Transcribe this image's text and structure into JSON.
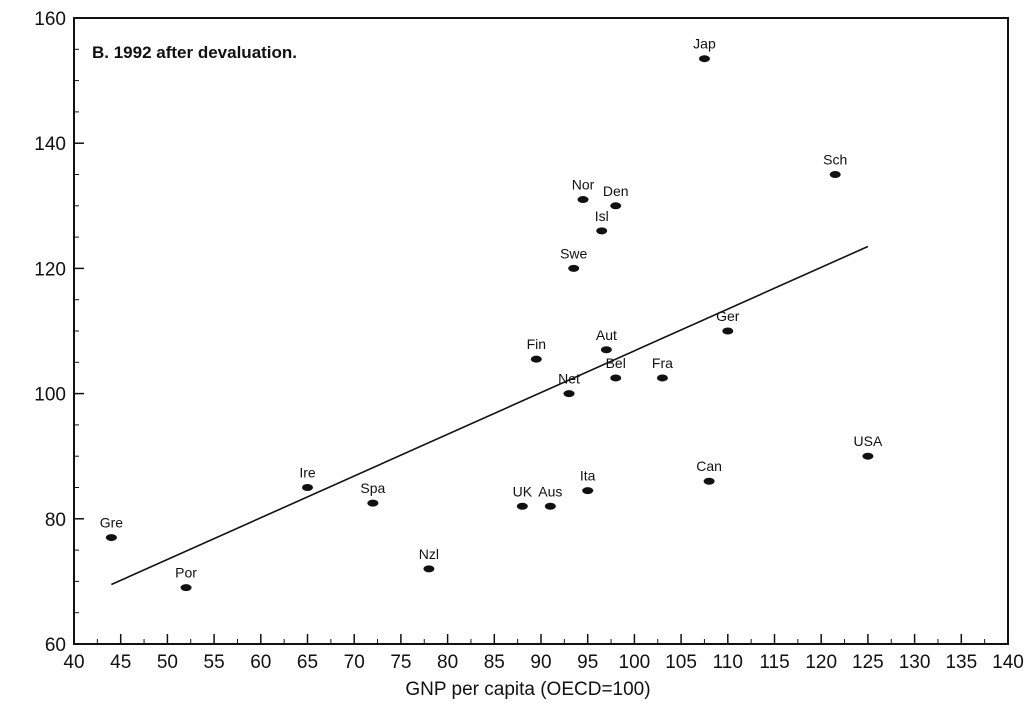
{
  "chart_data": {
    "type": "scatter",
    "title": "B. 1992 after devaluation.",
    "xlabel": "GNP per capita (OECD=100)",
    "ylabel": "",
    "xlim": [
      40,
      140
    ],
    "ylim": [
      60,
      160
    ],
    "x_ticks": [
      40,
      45,
      50,
      55,
      60,
      65,
      70,
      75,
      80,
      85,
      90,
      95,
      100,
      105,
      110,
      115,
      120,
      125,
      130,
      135,
      140
    ],
    "y_ticks": [
      60,
      80,
      100,
      120,
      140,
      160
    ],
    "grid": false,
    "legend": "none",
    "points": [
      {
        "label": "Gre",
        "x": 44,
        "y": 77
      },
      {
        "label": "Por",
        "x": 52,
        "y": 69
      },
      {
        "label": "Ire",
        "x": 65,
        "y": 85
      },
      {
        "label": "Spa",
        "x": 72,
        "y": 82.5
      },
      {
        "label": "Nzl",
        "x": 78,
        "y": 72
      },
      {
        "label": "UK",
        "x": 88,
        "y": 82
      },
      {
        "label": "Aus",
        "x": 91,
        "y": 82
      },
      {
        "label": "Ita",
        "x": 95,
        "y": 84.5
      },
      {
        "label": "Net",
        "x": 93,
        "y": 100
      },
      {
        "label": "Fin",
        "x": 89.5,
        "y": 105.5
      },
      {
        "label": "Swe",
        "x": 93.5,
        "y": 120
      },
      {
        "label": "Nor",
        "x": 94.5,
        "y": 131
      },
      {
        "label": "Isl",
        "x": 96.5,
        "y": 126
      },
      {
        "label": "Den",
        "x": 98,
        "y": 130
      },
      {
        "label": "Aut",
        "x": 97,
        "y": 107
      },
      {
        "label": "Bel",
        "x": 98,
        "y": 102.5
      },
      {
        "label": "Fra",
        "x": 103,
        "y": 102.5
      },
      {
        "label": "Ger",
        "x": 110,
        "y": 110
      },
      {
        "label": "Jap",
        "x": 107.5,
        "y": 153.5
      },
      {
        "label": "Can",
        "x": 108,
        "y": 86
      },
      {
        "label": "Sch",
        "x": 121.5,
        "y": 135
      },
      {
        "label": "USA",
        "x": 125,
        "y": 90
      }
    ],
    "trendline": {
      "x": [
        44,
        125
      ],
      "y": [
        69.5,
        123.5
      ]
    }
  }
}
